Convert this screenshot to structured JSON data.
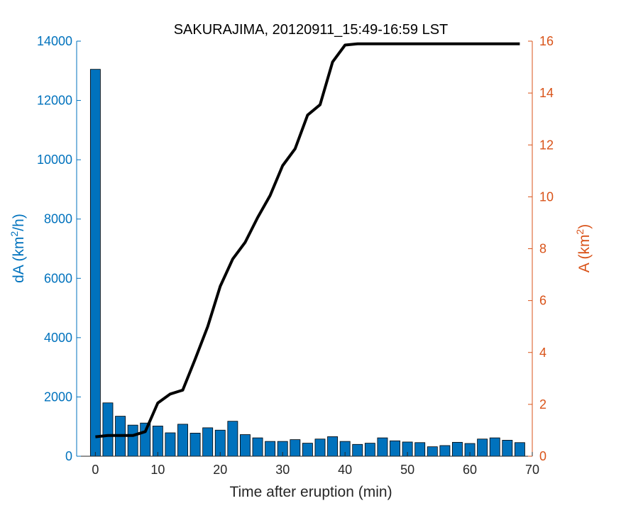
{
  "chart_data": {
    "type": "bar+line",
    "title": "SAKURAJIMA, 20120911_15:49-16:59 LST",
    "xlabel": "Time after eruption (min)",
    "ylabel_left": {
      "base": "dA (km",
      "sup": "2",
      "tail": "/h)"
    },
    "ylabel_right": {
      "base": "A (km",
      "sup": "2",
      "tail": ")"
    },
    "xlim": [
      -3,
      70
    ],
    "ylim_left": [
      0,
      14000
    ],
    "ylim_right": [
      0,
      16
    ],
    "xticks": [
      0,
      10,
      20,
      30,
      40,
      50,
      60,
      70
    ],
    "yticks_left": [
      0,
      2000,
      4000,
      6000,
      8000,
      10000,
      12000,
      14000
    ],
    "yticks_right": [
      0,
      2,
      4,
      6,
      8,
      10,
      12,
      14,
      16
    ],
    "colors": {
      "left_axis": "#0072BD",
      "right_axis": "#D95319",
      "bars": "#0072BD",
      "line": "#000000"
    },
    "bars": {
      "name": "dA",
      "x": [
        0,
        2,
        4,
        6,
        8,
        10,
        12,
        14,
        16,
        18,
        20,
        22,
        24,
        26,
        28,
        30,
        32,
        34,
        36,
        38,
        40,
        42,
        44,
        46,
        48,
        50,
        52,
        54,
        56,
        58,
        60,
        62,
        64,
        66,
        68
      ],
      "values": [
        13050,
        1800,
        1350,
        1050,
        1120,
        1020,
        790,
        1080,
        780,
        960,
        880,
        1180,
        730,
        620,
        500,
        500,
        560,
        440,
        580,
        660,
        500,
        400,
        440,
        620,
        520,
        480,
        460,
        320,
        360,
        470,
        430,
        580,
        620,
        540,
        460
      ]
    },
    "line": {
      "name": "A",
      "x": [
        0,
        2,
        4,
        6,
        8,
        10,
        12,
        14,
        16,
        18,
        20,
        22,
        24,
        26,
        28,
        30,
        32,
        34,
        36,
        38,
        40,
        42,
        44,
        46,
        48,
        50,
        52,
        54,
        56,
        58,
        60,
        62,
        64,
        66,
        68
      ],
      "values": [
        0.75,
        0.8,
        0.8,
        0.8,
        0.95,
        2.05,
        2.4,
        2.55,
        3.75,
        5.0,
        6.55,
        7.6,
        8.25,
        9.2,
        10.05,
        11.2,
        11.85,
        13.15,
        13.55,
        15.2,
        15.85,
        15.9,
        15.9,
        15.9,
        15.9,
        15.9,
        15.9,
        15.9,
        15.9,
        15.9,
        15.9,
        15.9,
        15.9,
        15.9,
        15.9
      ]
    }
  }
}
